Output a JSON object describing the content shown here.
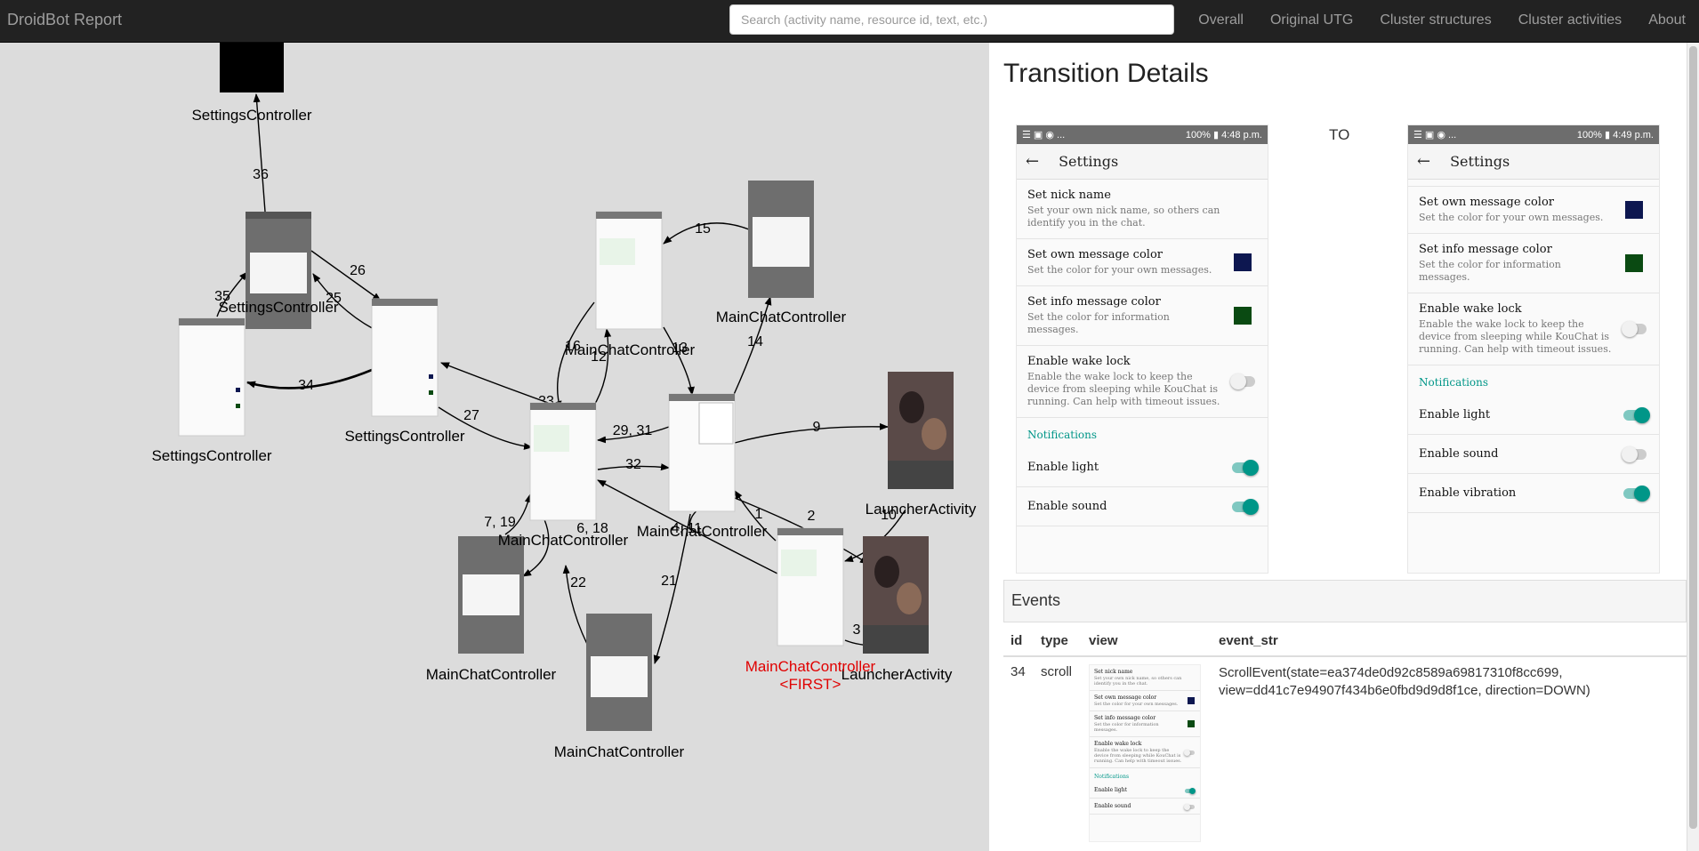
{
  "navbar": {
    "brand": "DroidBot Report",
    "search_placeholder": "Search (activity name, resource id, text, etc.)",
    "links": [
      "Overall",
      "Original UTG",
      "Cluster structures",
      "Cluster activities",
      "About"
    ]
  },
  "graph": {
    "nodes": {
      "n1": "SettingsController",
      "n2": "SettingsController",
      "n3": "SettingsController",
      "n4": "SettingsController",
      "n5": "MainChatController",
      "n6": "MainChatController",
      "n7": "MainChatController",
      "n8": "MainChatController",
      "n9": "MainChatController",
      "n10": "MainChatController",
      "n11": "LauncherActivity",
      "n12": "LauncherActivity",
      "first_name": "MainChatController",
      "first_tag": "<FIRST>"
    },
    "edges": {
      "e36": "36",
      "e35": "35",
      "e25": "25",
      "e26": "26",
      "e34": "34",
      "e27": "27",
      "e33": "33",
      "e15": "15",
      "e16": "16",
      "e12": "12",
      "e13": "13",
      "e14": "14",
      "e2931": "29, 31",
      "e32": "32",
      "e9": "9",
      "e719": "7, 19",
      "e618": "6, 18",
      "e411": "4, 11",
      "e1": "1",
      "e2": "2",
      "e10": "10",
      "e22": "22",
      "e21": "21",
      "e3": "3"
    }
  },
  "details": {
    "title": "Transition Details",
    "to_label": "TO",
    "from": {
      "status_left": "☰ ▣ ◉ ...",
      "status_right": "100% ▮ 4:48 p.m.",
      "appbar_title": "Settings",
      "prefs": [
        {
          "title": "Set nick name",
          "summary": "Set your own nick name, so others can identify you in the chat."
        },
        {
          "title": "Set own message color",
          "summary": "Set the color for your own messages."
        },
        {
          "title": "Set info message color",
          "summary": "Set the color for information messages."
        },
        {
          "title": "Enable wake lock",
          "summary": "Enable the wake lock to keep the device from sleeping while KouChat is running. Can help with timeout issues."
        }
      ],
      "section": "Notifications",
      "toggles": [
        "Enable light",
        "Enable sound"
      ]
    },
    "to": {
      "status_left": "☰ ▣ ◉ ...",
      "status_right": "100% ▮ 4:49 p.m.",
      "appbar_title": "Settings",
      "prefs": [
        {
          "title": "Set own message color",
          "summary": "Set the color for your own messages."
        },
        {
          "title": "Set info message color",
          "summary": "Set the color for information messages."
        },
        {
          "title": "Enable wake lock",
          "summary": "Enable the wake lock to keep the device from sleeping while KouChat is running. Can help with timeout issues."
        }
      ],
      "section": "Notifications",
      "toggles": [
        "Enable light",
        "Enable sound",
        "Enable vibration"
      ]
    },
    "colors": {
      "own": "#0d1750",
      "info": "#0a4a12",
      "teal": "#009688"
    }
  },
  "events": {
    "heading": "Events",
    "columns": [
      "id",
      "type",
      "view",
      "event_str"
    ],
    "row": {
      "id": "34",
      "type": "scroll",
      "event_str": "ScrollEvent(state=ea374de0d92c8589a69817310f8cc699, view=dd41c7e94907f434b6e0fbd9d9d8f1ce, direction=DOWN)",
      "mini": {
        "prefs": [
          {
            "title": "Set nick name",
            "summary": "Set your own nick name, so others can identify you in the chat."
          },
          {
            "title": "Set own message color",
            "summary": "Set the color for your own messages."
          },
          {
            "title": "Set info message color",
            "summary": "Set the color for information messages."
          },
          {
            "title": "Enable wake lock",
            "summary": "Enable the wake lock to keep the device from sleeping while KouChat is running. Can help with timeout issues."
          }
        ],
        "section": "Notifications",
        "toggles": [
          "Enable light",
          "Enable sound"
        ]
      }
    }
  }
}
